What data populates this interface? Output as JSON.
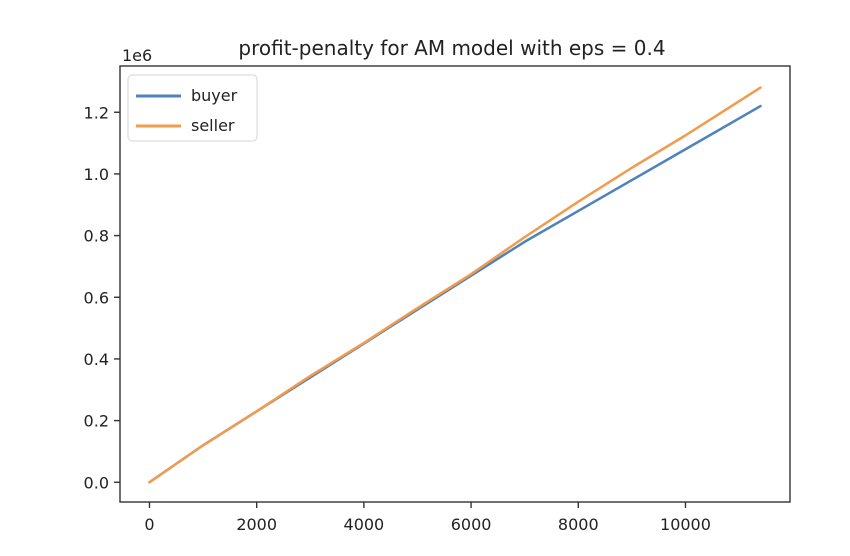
{
  "chart_data": {
    "type": "line",
    "title": "profit-penalty for AM model with eps = 0.4",
    "xlabel": "",
    "ylabel": "",
    "y_scale_label": "1e6",
    "xlim": [
      -550,
      11950
    ],
    "ylim": [
      -0.064,
      1.35
    ],
    "x_ticks": [
      0,
      2000,
      4000,
      6000,
      8000,
      10000
    ],
    "x_tick_labels": [
      "0",
      "2000",
      "4000",
      "6000",
      "8000",
      "10000"
    ],
    "y_ticks": [
      0.0,
      0.2,
      0.4,
      0.6,
      0.8,
      1.0,
      1.2
    ],
    "y_tick_labels": [
      "0.0",
      "0.2",
      "0.4",
      "0.6",
      "0.8",
      "1.0",
      "1.2"
    ],
    "legend_position": "upper-left",
    "series": [
      {
        "name": "buyer",
        "color": "#4e81bd",
        "x": [
          0,
          1000,
          2000,
          3000,
          4000,
          5000,
          6000,
          7000,
          8000,
          9000,
          10000,
          11400
        ],
        "y": [
          0.0,
          0.12,
          0.23,
          0.34,
          0.45,
          0.56,
          0.67,
          0.78,
          0.88,
          0.98,
          1.08,
          1.22
        ]
      },
      {
        "name": "seller",
        "color": "#f39b4c",
        "x": [
          0,
          1000,
          2000,
          3000,
          4000,
          5000,
          6000,
          7000,
          8000,
          9000,
          10000,
          11400
        ],
        "y": [
          0.0,
          0.12,
          0.23,
          0.345,
          0.452,
          0.565,
          0.675,
          0.795,
          0.91,
          1.02,
          1.125,
          1.28
        ]
      }
    ]
  }
}
